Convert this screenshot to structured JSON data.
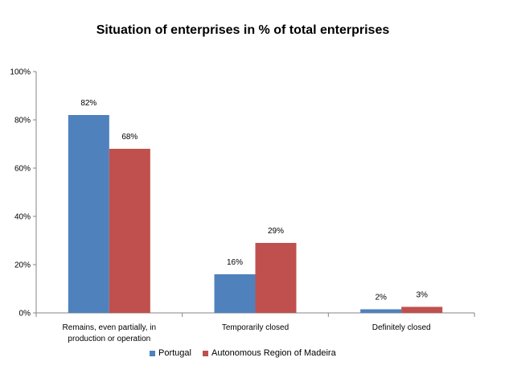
{
  "chart_data": {
    "type": "bar",
    "title": "Situation of enterprises in % of total enterprises",
    "xlabel": "",
    "ylabel": "",
    "ylim": [
      0,
      100
    ],
    "yticks": [
      "0%",
      "20%",
      "40%",
      "60%",
      "80%",
      "100%"
    ],
    "categories": [
      [
        "Remains, even partially, in",
        "production or operation"
      ],
      [
        "Temporarily closed"
      ],
      [
        "Definitely closed"
      ]
    ],
    "series": [
      {
        "name": "Portugal",
        "color": "#4F81BD",
        "values": [
          82,
          16,
          1.5
        ],
        "labels": [
          "82%",
          "16%",
          "2%"
        ]
      },
      {
        "name": "Autonomous Region of Madeira",
        "color": "#C0504D",
        "values": [
          68,
          29,
          2.5
        ],
        "labels": [
          "68%",
          "29%",
          "3%"
        ]
      }
    ],
    "grid": false,
    "legend_position": "bottom"
  }
}
